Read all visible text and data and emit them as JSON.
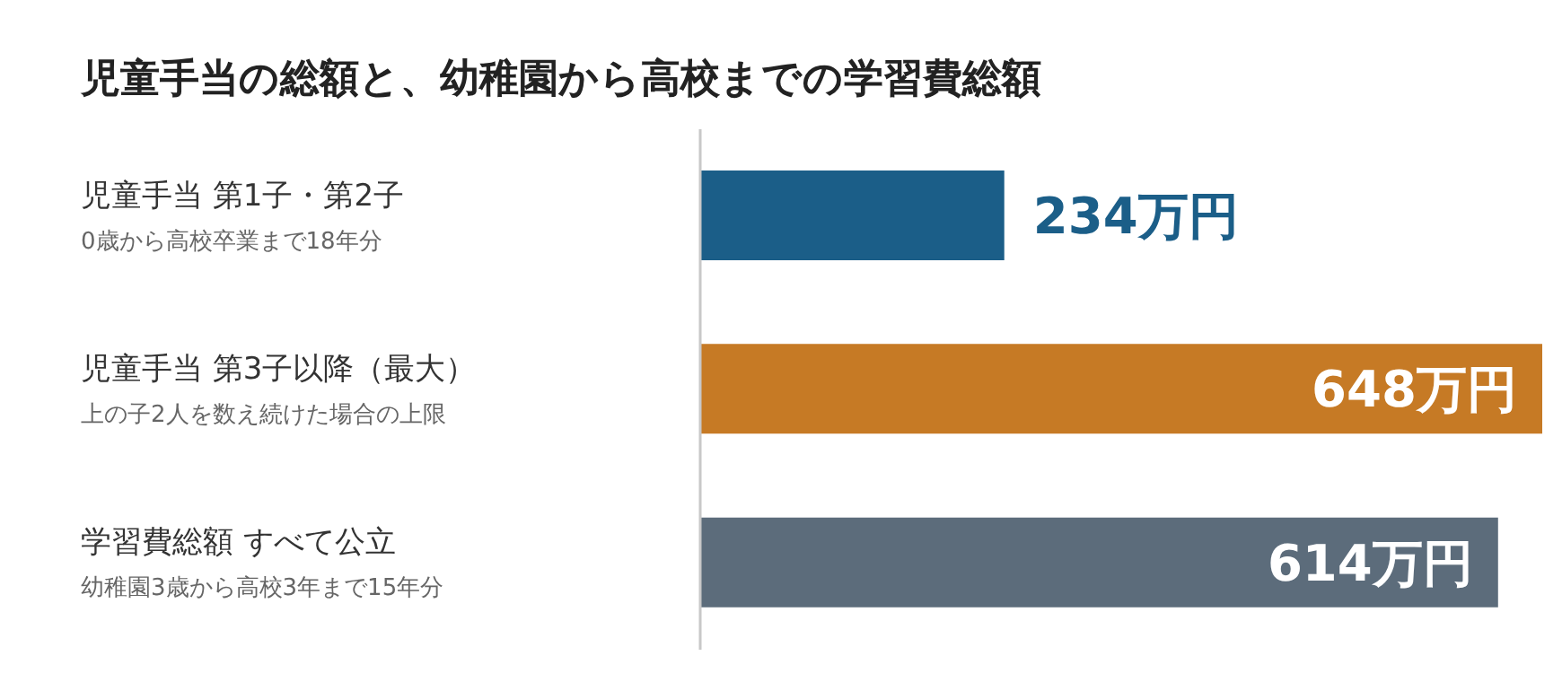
{
  "chart_data": {
    "type": "bar",
    "orientation": "horizontal",
    "title": "児童手当の総額と、幼稚園から高校までの学習費総額",
    "categories": [
      "児童手当 第1子・第2子",
      "児童手当 第3子以降（最大）",
      "学習費総額 すべて公立"
    ],
    "annotations": [
      "0歳から高校卒業まで18年分",
      "上の子2人を数え続けた場合の上限",
      "幼稚園3歳から高校3年まで15年分"
    ],
    "values": [
      234,
      648,
      614
    ],
    "colors": [
      "#1b5e88",
      "#c67a25",
      "#5c6c7b"
    ],
    "value_labels": [
      "234万円",
      "648万円",
      "614万円"
    ]
  }
}
